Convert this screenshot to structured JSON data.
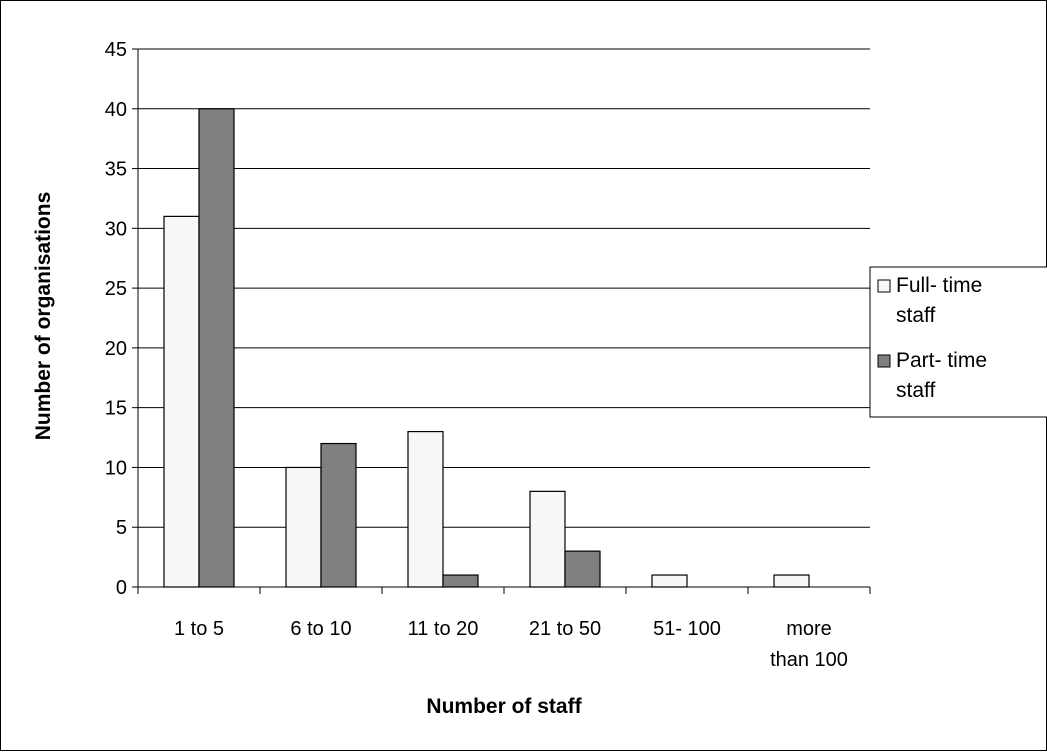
{
  "chart_data": {
    "type": "bar",
    "categories": [
      [
        "1 to 5"
      ],
      [
        "6 to 10"
      ],
      [
        "11 to 20"
      ],
      [
        "21 to 50"
      ],
      [
        "51- 100"
      ],
      [
        "more",
        "than 100"
      ]
    ],
    "series": [
      {
        "name": [
          "Full- time",
          "staff"
        ],
        "values": [
          31,
          10,
          13,
          8,
          1,
          1
        ],
        "color": "#f7f7f7"
      },
      {
        "name": [
          "Part- time",
          "staff"
        ],
        "values": [
          40,
          12,
          1,
          3,
          0,
          0
        ],
        "color": "#808080"
      }
    ],
    "xlabel": "Number of staff",
    "ylabel": "Number of organisations",
    "ylim": [
      0,
      45
    ],
    "yticks": [
      0,
      5,
      10,
      15,
      20,
      25,
      30,
      35,
      40,
      45
    ],
    "grid": true,
    "legend": "right"
  }
}
